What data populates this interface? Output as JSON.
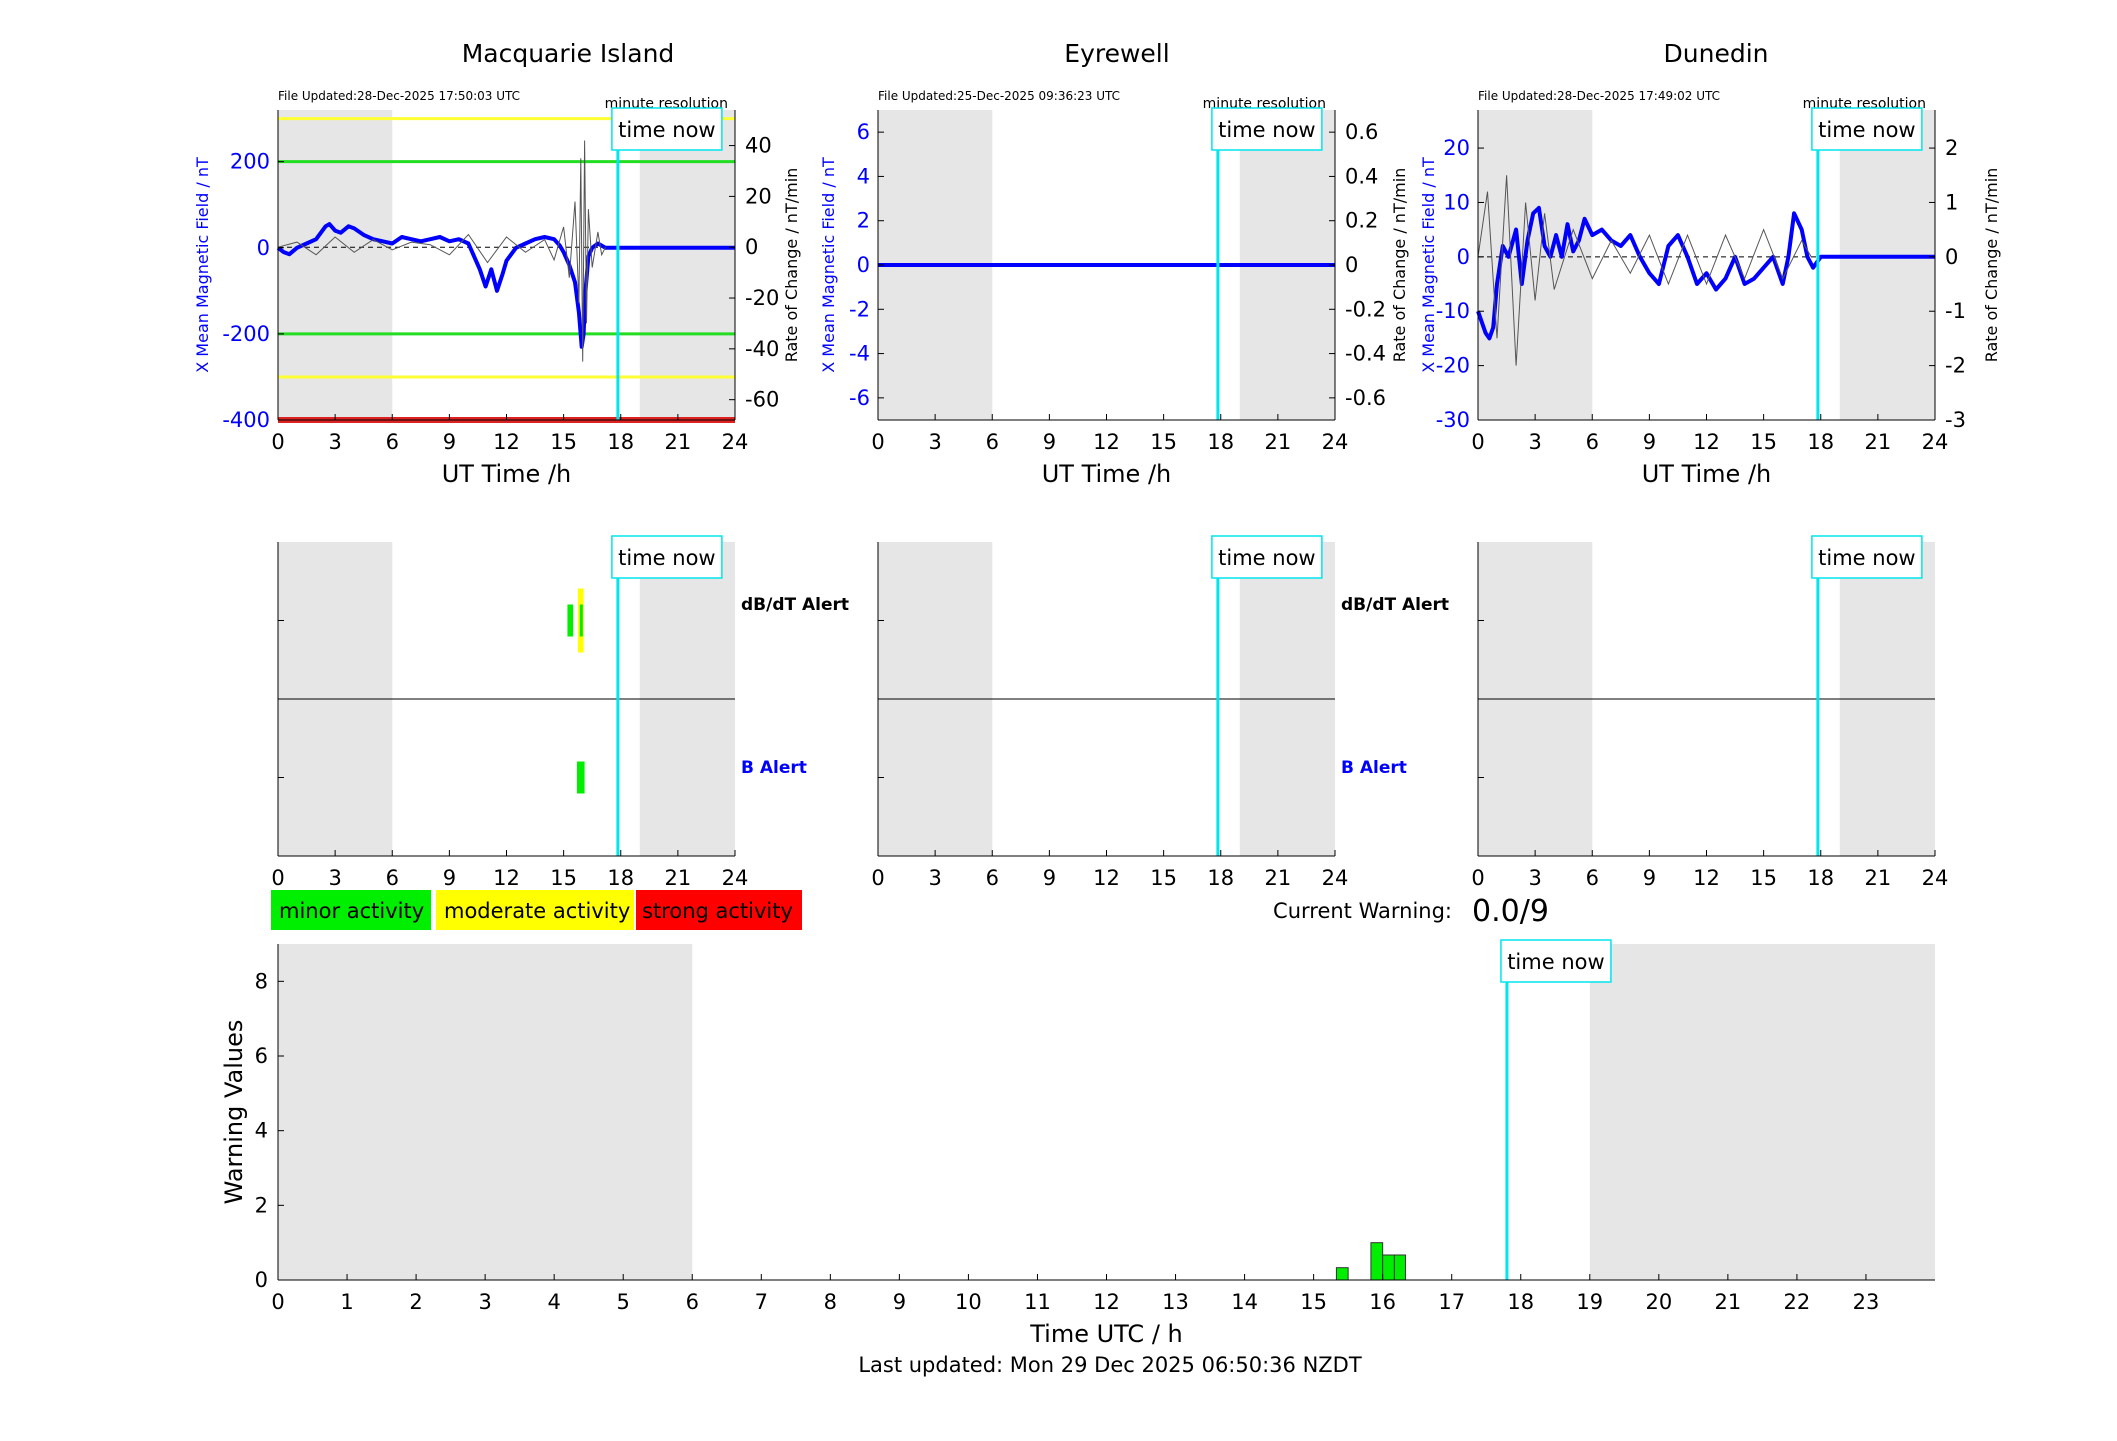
{
  "colors": {
    "field_line": "#0000ff",
    "rate_line": "#555555",
    "time_now": "#00e5ee",
    "shade": "#e6e6e6",
    "minor": "#00ee00",
    "moderate": "#ffff00",
    "strong": "#ff0000",
    "yellow_threshold": "#ffff33",
    "green_threshold": "#22dd22",
    "red_threshold": "#dd2222"
  },
  "legend": {
    "minor": "minor activity",
    "moderate": "moderate activity",
    "strong": "strong activity"
  },
  "current_warning": {
    "label": "Current Warning:",
    "value": "0.0/9"
  },
  "footer": {
    "last_updated": "Last updated: Mon 29 Dec 2025 06:50:36 NZDT"
  },
  "chart_data": [
    {
      "type": "line",
      "title": "Macquarie Island",
      "file_updated": "File Updated:28-Dec-2025 17:50:03 UTC",
      "resolution": "minute resolution",
      "time_now_label": "time now",
      "time_now": 17.85,
      "night_shading": [
        [
          0,
          6
        ],
        [
          19,
          24
        ]
      ],
      "xlabel": "UT Time /h",
      "ylabel_left": "X Mean Magnetic Field / nT",
      "ylabel_right": "Rate of Change / nT/min",
      "xlim": [
        0,
        24
      ],
      "xticks": [
        0,
        3,
        6,
        9,
        12,
        15,
        18,
        21,
        24
      ],
      "ylim_left": [
        -400,
        320
      ],
      "yticks_left": [
        -400,
        -200,
        0,
        200
      ],
      "ylim_right": [
        -68,
        54
      ],
      "yticks_right": [
        -60,
        -40,
        -20,
        0,
        20,
        40
      ],
      "thresholds_left": [
        {
          "value": 300,
          "color": "yellow"
        },
        {
          "value": 200,
          "color": "green"
        },
        {
          "value": -200,
          "color": "green"
        },
        {
          "value": -300,
          "color": "yellow"
        },
        {
          "value": -400,
          "color": "red"
        }
      ],
      "series": [
        {
          "axis": "left",
          "x": [
            0,
            0.3,
            0.6,
            1.0,
            1.5,
            2.0,
            2.5,
            2.7,
            3.0,
            3.3,
            3.7,
            4.0,
            4.5,
            5.0,
            5.5,
            6.0,
            6.5,
            7.0,
            7.5,
            8.0,
            8.5,
            9.0,
            9.5,
            10.0,
            10.3,
            10.6,
            10.9,
            11.2,
            11.5,
            11.8,
            12.0,
            12.5,
            13.0,
            13.5,
            14.0,
            14.5,
            14.8,
            15.0,
            15.3,
            15.6,
            15.8,
            15.95,
            16.05,
            16.15,
            16.3,
            16.5,
            16.8,
            17.0,
            17.2,
            17.5,
            18.0,
            24.0
          ],
          "y": [
            0,
            -10,
            -15,
            0,
            10,
            20,
            50,
            55,
            40,
            35,
            50,
            45,
            30,
            20,
            15,
            10,
            25,
            20,
            15,
            20,
            25,
            15,
            20,
            10,
            -20,
            -50,
            -90,
            -50,
            -100,
            -60,
            -30,
            0,
            10,
            20,
            25,
            20,
            5,
            -10,
            -40,
            -80,
            -150,
            -230,
            -200,
            -100,
            -20,
            0,
            10,
            5,
            0,
            0,
            0,
            0
          ]
        },
        {
          "axis": "right",
          "x": [
            0,
            1,
            2,
            3,
            4,
            5,
            6,
            7,
            8,
            9,
            10,
            11,
            12,
            13,
            14,
            14.5,
            15.0,
            15.3,
            15.6,
            15.8,
            15.9,
            16.0,
            16.1,
            16.2,
            16.3,
            16.5,
            16.8,
            17.0,
            17.2
          ],
          "y": [
            0,
            2,
            -3,
            4,
            -2,
            3,
            -1,
            2,
            1,
            -3,
            5,
            -6,
            4,
            -2,
            3,
            -5,
            8,
            -12,
            18,
            -22,
            35,
            -45,
            42,
            -30,
            15,
            -8,
            6,
            -3,
            0
          ]
        }
      ]
    },
    {
      "type": "line",
      "title": "Eyrewell",
      "file_updated": "File Updated:25-Dec-2025 09:36:23 UTC",
      "resolution": "minute resolution",
      "time_now_label": "time now",
      "time_now": 17.85,
      "night_shading": [
        [
          0,
          6
        ],
        [
          19,
          24
        ]
      ],
      "xlabel": "UT Time /h",
      "ylabel_left": "X Mean Magnetic Field / nT",
      "ylabel_right": "Rate of Change / nT/min",
      "xlim": [
        0,
        24
      ],
      "xticks": [
        0,
        3,
        6,
        9,
        12,
        15,
        18,
        21,
        24
      ],
      "ylim_left": [
        -7,
        7
      ],
      "yticks_left": [
        -6,
        -4,
        -2,
        0,
        2,
        4,
        6
      ],
      "ylim_right": [
        -0.7,
        0.7
      ],
      "yticks_right": [
        -0.6,
        -0.4,
        -0.2,
        0,
        0.2,
        0.4,
        0.6
      ],
      "series": [
        {
          "axis": "left",
          "x": [
            0,
            24
          ],
          "y": [
            0,
            0
          ]
        }
      ]
    },
    {
      "type": "line",
      "title": "Dunedin",
      "file_updated": "File Updated:28-Dec-2025 17:49:02 UTC",
      "resolution": "minute resolution",
      "time_now_label": "time now",
      "time_now": 17.85,
      "night_shading": [
        [
          0,
          6
        ],
        [
          19,
          24
        ]
      ],
      "xlabel": "UT Time /h",
      "ylabel_left": "X Mean Magnetic Field / nT",
      "ylabel_right": "Rate of Change / nT/min",
      "xlim": [
        0,
        24
      ],
      "xticks": [
        0,
        3,
        6,
        9,
        12,
        15,
        18,
        21,
        24
      ],
      "ylim_left": [
        -30,
        27
      ],
      "yticks_left": [
        -30,
        -20,
        -10,
        0,
        10,
        20
      ],
      "ylim_right": [
        -3,
        2.7
      ],
      "yticks_right": [
        -3,
        -2,
        -1,
        0,
        1,
        2
      ],
      "series": [
        {
          "axis": "left",
          "x": [
            0,
            0.2,
            0.4,
            0.6,
            0.8,
            1.0,
            1.3,
            1.6,
            2.0,
            2.3,
            2.6,
            2.9,
            3.2,
            3.5,
            3.8,
            4.1,
            4.4,
            4.7,
            5.0,
            5.3,
            5.6,
            6.0,
            6.5,
            7.0,
            7.5,
            8.0,
            8.5,
            9.0,
            9.5,
            10.0,
            10.5,
            11.0,
            11.5,
            12.0,
            12.5,
            13.0,
            13.5,
            14.0,
            14.5,
            15.0,
            15.5,
            16.0,
            16.3,
            16.6,
            17.0,
            17.3,
            17.6,
            18.0,
            24.0
          ],
          "y": [
            -10,
            -12,
            -14,
            -15,
            -13,
            -5,
            2,
            0,
            5,
            -5,
            3,
            8,
            9,
            2,
            0,
            4,
            0,
            6,
            1,
            3,
            7,
            4,
            5,
            3,
            2,
            4,
            0,
            -3,
            -5,
            2,
            4,
            0,
            -5,
            -3,
            -6,
            -4,
            0,
            -5,
            -4,
            -2,
            0,
            -5,
            0,
            8,
            5,
            0,
            -2,
            0,
            0
          ]
        },
        {
          "axis": "right",
          "x": [
            0,
            0.5,
            1.0,
            1.5,
            2.0,
            2.5,
            3.0,
            3.5,
            4.0,
            5.0,
            6.0,
            7.0,
            8.0,
            9.0,
            10.0,
            11.0,
            12.0,
            13.0,
            14.0,
            15.0,
            16.0,
            17.0,
            17.5
          ],
          "y": [
            0,
            1.2,
            -1.5,
            1.5,
            -2.0,
            1.0,
            -0.8,
            0.8,
            -0.6,
            0.5,
            -0.4,
            0.3,
            -0.3,
            0.4,
            -0.5,
            0.4,
            -0.5,
            0.4,
            -0.4,
            0.5,
            -0.4,
            0.3,
            0
          ]
        }
      ]
    },
    {
      "type": "bar",
      "panel": "alerts",
      "station": "Macquarie Island",
      "time_now_label": "time now",
      "time_now": 17.85,
      "night_shading": [
        [
          0,
          6
        ],
        [
          19,
          24
        ]
      ],
      "xlim": [
        0,
        24
      ],
      "xticks": [
        0,
        3,
        6,
        9,
        12,
        15,
        18,
        21,
        24
      ],
      "rows": [
        "dB/dT Alert",
        "B Alert"
      ],
      "events": [
        {
          "row": "dB/dT Alert",
          "start": 15.2,
          "end": 15.5,
          "level": "minor"
        },
        {
          "row": "dB/dT Alert",
          "start": 15.75,
          "end": 16.05,
          "level": "moderate"
        },
        {
          "row": "dB/dT Alert",
          "start": 15.85,
          "end": 15.95,
          "level": "minor"
        },
        {
          "row": "B Alert",
          "start": 15.7,
          "end": 16.1,
          "level": "minor"
        }
      ]
    },
    {
      "type": "bar",
      "panel": "alerts",
      "station": "Eyrewell",
      "time_now_label": "time now",
      "time_now": 17.85,
      "night_shading": [
        [
          0,
          6
        ],
        [
          19,
          24
        ]
      ],
      "xlim": [
        0,
        24
      ],
      "xticks": [
        0,
        3,
        6,
        9,
        12,
        15,
        18,
        21,
        24
      ],
      "rows": [
        "dB/dT Alert",
        "B Alert"
      ],
      "events": []
    },
    {
      "type": "bar",
      "panel": "alerts",
      "station": "Dunedin",
      "time_now_label": "time now",
      "time_now": 17.85,
      "night_shading": [
        [
          0,
          6
        ],
        [
          19,
          24
        ]
      ],
      "xlim": [
        0,
        24
      ],
      "xticks": [
        0,
        3,
        6,
        9,
        12,
        15,
        18,
        21,
        24
      ],
      "rows": [],
      "events": []
    },
    {
      "type": "bar",
      "panel": "warning",
      "time_now_label": "time now",
      "time_now": 17.8,
      "night_shading": [
        [
          0,
          6
        ],
        [
          19,
          24
        ]
      ],
      "xlabel": "Time UTC / h",
      "ylabel": "Warning Values",
      "xlim": [
        0,
        24
      ],
      "xticks": [
        0,
        1,
        2,
        3,
        4,
        5,
        6,
        7,
        8,
        9,
        10,
        11,
        12,
        13,
        14,
        15,
        16,
        17,
        18,
        19,
        20,
        21,
        22,
        23
      ],
      "ylim": [
        0,
        9
      ],
      "yticks": [
        0,
        2,
        4,
        6,
        8
      ],
      "bars": [
        {
          "start": 15.33,
          "end": 15.5,
          "value": 0.33
        },
        {
          "start": 15.83,
          "end": 16.0,
          "value": 1.0
        },
        {
          "start": 16.0,
          "end": 16.17,
          "value": 0.67
        },
        {
          "start": 16.17,
          "end": 16.33,
          "value": 0.67
        }
      ]
    }
  ]
}
